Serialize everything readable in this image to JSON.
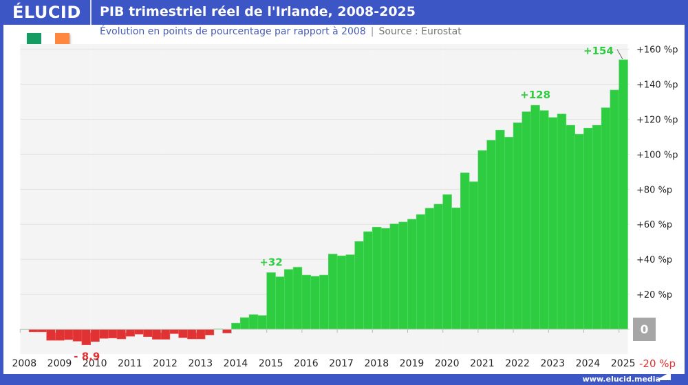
{
  "header": {
    "logo": "ÉLUCID",
    "title": "PIB trimestriel réel de l'Irlande, 2008-2025"
  },
  "subtitle": {
    "text": "Évolution en points de pourcentage par rapport à 2008",
    "separator": "|",
    "source": "Source : Eurostat"
  },
  "flag": {
    "colors": [
      "#169b62",
      "#ffffff",
      "#ff883e"
    ]
  },
  "footer": {
    "url": "www.elucid.media"
  },
  "colors": {
    "header": "#3d56c5",
    "positive": "#2ecc40",
    "negative": "#e03232",
    "subtitle": "#4a5fb0",
    "zero_box": "#a6a6a6"
  },
  "chart_data": {
    "type": "bar",
    "title": "PIB trimestriel réel de l'Irlande, 2008-2025",
    "frequency": "quarterly",
    "x_start": "2008-Q1",
    "x_ticks": [
      "2008",
      "2009",
      "2010",
      "2011",
      "2012",
      "2013",
      "2014",
      "2015",
      "2016",
      "2017",
      "2018",
      "2019",
      "2020",
      "2021",
      "2022",
      "2023",
      "2024",
      "2025"
    ],
    "y_ticks": [
      {
        "v": 160,
        "label": "+160 %p"
      },
      {
        "v": 140,
        "label": "+140 %p"
      },
      {
        "v": 120,
        "label": "+120 %p"
      },
      {
        "v": 100,
        "label": "+100 %p"
      },
      {
        "v": 80,
        "label": "+80 %p"
      },
      {
        "v": 60,
        "label": "+60 %p"
      },
      {
        "v": 40,
        "label": "+40 %p"
      },
      {
        "v": 20,
        "label": "+20 %p"
      },
      {
        "v": 0,
        "label": "0"
      },
      {
        "v": -20,
        "label": "-20 %p"
      }
    ],
    "ylim": [
      -20,
      160
    ],
    "y_axis_position": "right",
    "grid": true,
    "values": [
      0,
      -1.5,
      -1.5,
      -6.3,
      -6.3,
      -5.9,
      -6.8,
      -8.9,
      -7.0,
      -5.2,
      -5.0,
      -5.5,
      -4.0,
      -2.8,
      -4.2,
      -5.7,
      -5.7,
      -2.5,
      -4.8,
      -5.5,
      -5.5,
      -3.2,
      0.3,
      -2.1,
      3.5,
      6.7,
      8.4,
      7.9,
      32.4,
      30.0,
      34.2,
      35.5,
      31.0,
      30.3,
      31.0,
      43.0,
      42.0,
      42.6,
      50.2,
      55.8,
      58.4,
      57.7,
      60.2,
      61.3,
      62.9,
      65.6,
      69.2,
      71.5,
      77.0,
      69.4,
      89.4,
      84.3,
      102.2,
      108.0,
      113.8,
      109.8,
      118.0,
      124.3,
      128.0,
      125.0,
      121.0,
      123.0,
      116.6,
      111.5,
      115.0,
      116.6,
      126.6,
      136.7,
      154.0
    ],
    "annotations": [
      {
        "label": "- 8,9",
        "index": 7,
        "kind": "negative"
      },
      {
        "label": "+32",
        "index": 28,
        "kind": "positive"
      },
      {
        "label": "+128",
        "index": 58,
        "kind": "positive"
      },
      {
        "label": "+154",
        "index": 68,
        "kind": "positive"
      }
    ]
  }
}
